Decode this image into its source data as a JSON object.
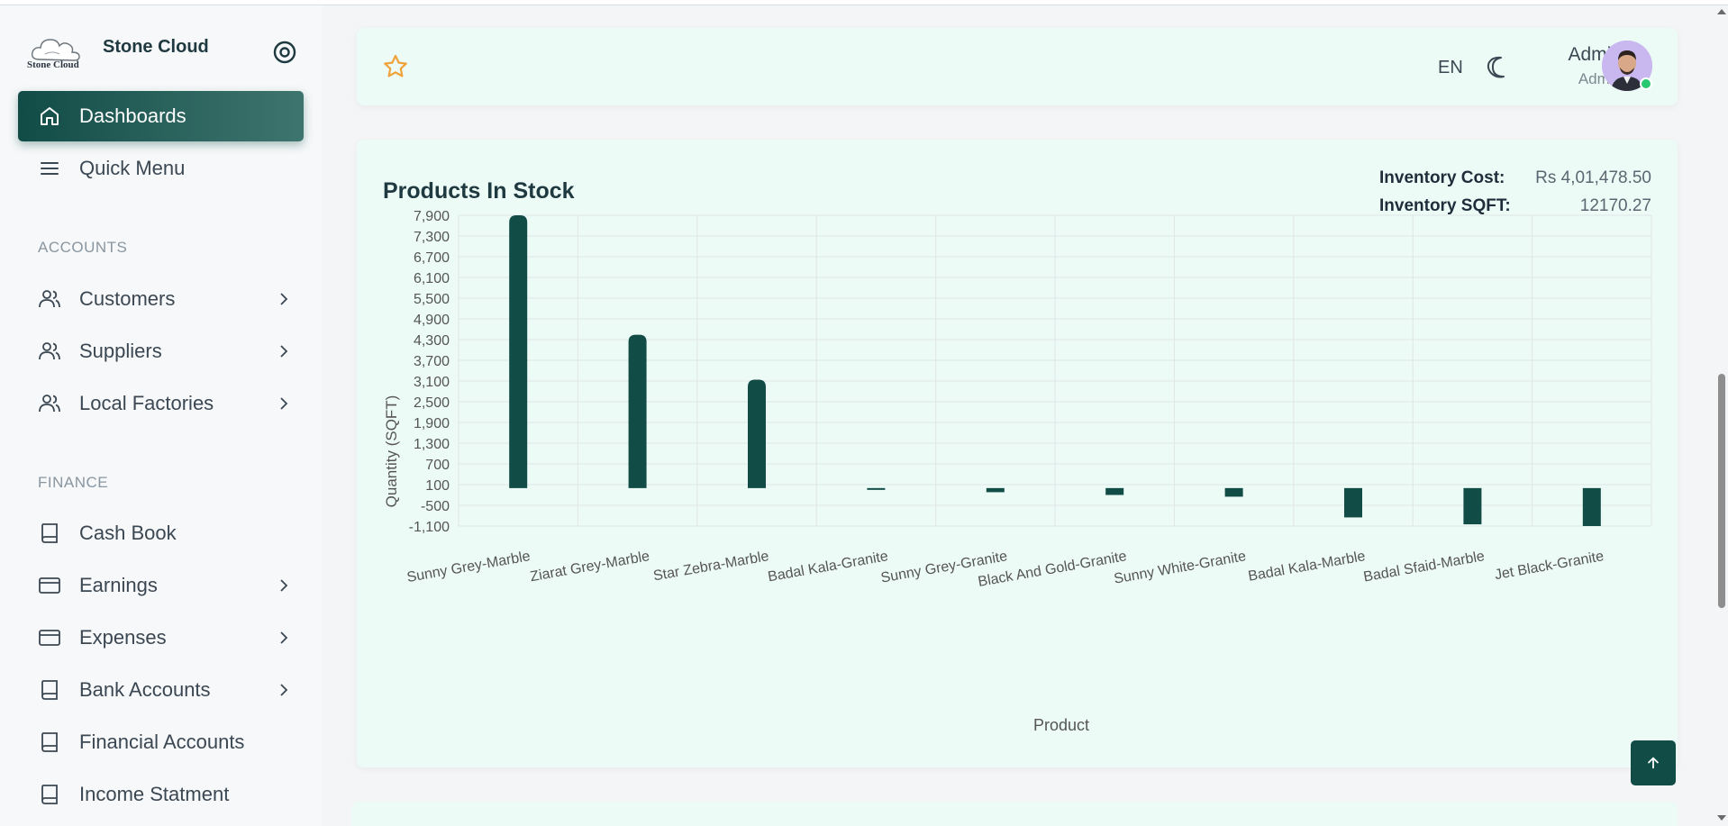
{
  "brand": {
    "name": "Stone Cloud",
    "logo_text": "Stone Cloud"
  },
  "sidebar": {
    "items_top": [
      {
        "label": "Dashboards",
        "icon": "home-icon",
        "active": true
      },
      {
        "label": "Quick Menu",
        "icon": "menu-icon"
      }
    ],
    "sections": [
      {
        "label": "ACCOUNTS",
        "items": [
          {
            "label": "Customers",
            "icon": "users-icon",
            "chevron": true
          },
          {
            "label": "Suppliers",
            "icon": "users-icon",
            "chevron": true
          },
          {
            "label": "Local Factories",
            "icon": "users-icon",
            "chevron": true
          }
        ]
      },
      {
        "label": "FINANCE",
        "items": [
          {
            "label": "Cash Book",
            "icon": "book-icon",
            "chevron": false
          },
          {
            "label": "Earnings",
            "icon": "credit-card-icon",
            "chevron": true
          },
          {
            "label": "Expenses",
            "icon": "credit-card-icon",
            "chevron": true
          },
          {
            "label": "Bank Accounts",
            "icon": "book-icon",
            "chevron": true
          },
          {
            "label": "Financial Accounts",
            "icon": "book-icon",
            "chevron": false
          },
          {
            "label": "Income Statment",
            "icon": "book-icon",
            "chevron": false
          }
        ]
      }
    ]
  },
  "topbar": {
    "language": "EN",
    "user_name": "Admin",
    "user_role": "Admin"
  },
  "card": {
    "title": "Products In Stock",
    "inventory_cost_label": "Inventory Cost:",
    "inventory_cost_value": "Rs 4,01,478.50",
    "inventory_sqft_label": "Inventory SQFT:",
    "inventory_sqft_value": "12170.27"
  },
  "colors": {
    "accent": "#124c47",
    "card_bg": "#edfbf7",
    "online": "#29c76f",
    "star": "#f0a23a"
  },
  "chart_data": {
    "type": "bar",
    "xlabel": "Product",
    "ylabel": "Quantity (SQFT)",
    "ylim": [
      -1100,
      7900
    ],
    "yticks": [
      7900,
      7300,
      6700,
      6100,
      5500,
      4900,
      4300,
      3700,
      3100,
      2500,
      1900,
      1300,
      700,
      100,
      -500,
      -1100
    ],
    "ytick_labels": [
      "7,900",
      "7,300",
      "6,700",
      "6,100",
      "5,500",
      "4,900",
      "4,300",
      "3,700",
      "3,100",
      "2,500",
      "1,900",
      "1,300",
      "700",
      "100",
      "-500",
      "-1,100"
    ],
    "categories": [
      "Sunny Grey-Marble",
      "Ziarat Grey-Marble",
      "Star Zebra-Marble",
      "Badal Kala-Granite",
      "Sunny Grey-Granite",
      "Black And Gold-Granite",
      "Sunny White-Granite",
      "Badal Kala-Marble",
      "Badal Sfaid-Marble",
      "Jet Black-Granite"
    ],
    "values": [
      7900,
      4440,
      3140,
      -50,
      -120,
      -200,
      -250,
      -850,
      -1050,
      -1100
    ],
    "grid": true,
    "bar_color": "#124c47"
  }
}
